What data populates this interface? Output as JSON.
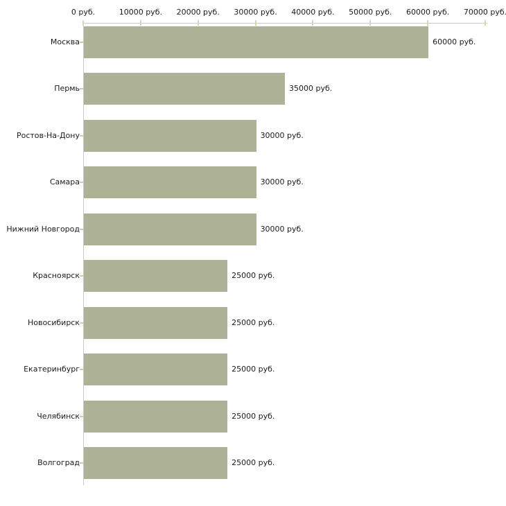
{
  "chart_data": {
    "type": "bar",
    "orientation": "horizontal",
    "title": "",
    "xlabel": "",
    "ylabel": "",
    "xlim": [
      0,
      70000
    ],
    "grid": false,
    "legend": null,
    "x_tick_values": [
      0,
      10000,
      20000,
      30000,
      40000,
      50000,
      60000,
      70000
    ],
    "x_tick_labels": [
      "0 руб.",
      "10000 руб.",
      "20000 руб.",
      "30000 руб.",
      "40000 руб.",
      "50000 руб.",
      "60000 руб.",
      "70000 руб."
    ],
    "categories": [
      "Москва",
      "Пермь",
      "Ростов-На-Дону",
      "Самара",
      "Нижний Новгород",
      "Красноярск",
      "Новосибирск",
      "Екатеринбург",
      "Челябинск",
      "Волгоград"
    ],
    "values": [
      60000,
      35000,
      30000,
      30000,
      30000,
      25000,
      25000,
      25000,
      25000,
      25000
    ],
    "value_labels": [
      "60000 руб.",
      "35000 руб.",
      "30000 руб.",
      "30000 руб.",
      "30000 руб.",
      "25000 руб.",
      "25000 руб.",
      "25000 руб.",
      "25000 руб.",
      "25000 руб."
    ],
    "colors": {
      "bar": "#adb196",
      "axis_line": "#c9c9c9",
      "x_tick": "#d5d7b0",
      "y_tick": "#c9cbb2",
      "text": "#1b1b1b",
      "background": "#ffffff"
    }
  }
}
